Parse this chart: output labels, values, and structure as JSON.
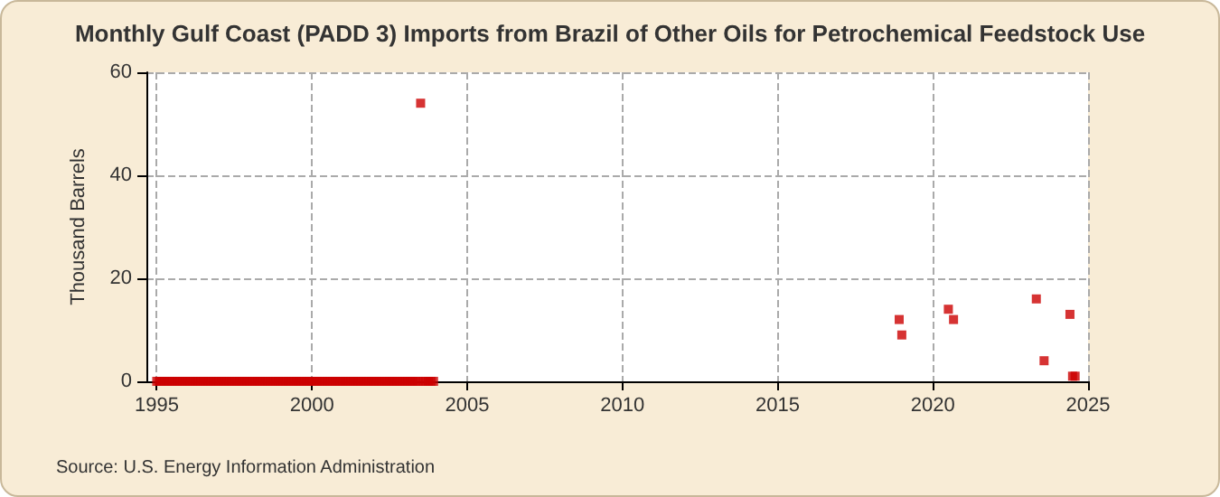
{
  "chart_data": {
    "type": "scatter",
    "title": "Monthly Gulf Coast (PADD 3) Imports from Brazil of Other Oils for Petrochemical Feedstock Use",
    "ylabel": "Thousand Barrels",
    "annotations": [
      "Source: U.S. Energy Information Administration"
    ],
    "x": [
      "1995-01",
      "1995-02",
      "1995-03",
      "1995-04",
      "1995-05",
      "1995-06",
      "1995-07",
      "1995-08",
      "1995-09",
      "1995-10",
      "1995-11",
      "1995-12",
      "1996-01",
      "1996-02",
      "1996-03",
      "1996-04",
      "1996-05",
      "1996-06",
      "1996-07",
      "1996-08",
      "1996-09",
      "1996-10",
      "1996-11",
      "1996-12",
      "1997-01",
      "1997-02",
      "1997-03",
      "1997-04",
      "1997-05",
      "1997-06",
      "1997-07",
      "1997-08",
      "1997-09",
      "1997-10",
      "1997-11",
      "1997-12",
      "1998-01",
      "1998-02",
      "1998-03",
      "1998-04",
      "1998-05",
      "1998-06",
      "1998-07",
      "1998-08",
      "1998-09",
      "1998-10",
      "1998-11",
      "1998-12",
      "1999-01",
      "1999-02",
      "1999-03",
      "1999-04",
      "1999-05",
      "1999-06",
      "1999-07",
      "1999-08",
      "1999-09",
      "1999-10",
      "1999-11",
      "1999-12",
      "2000-01",
      "2000-02",
      "2000-03",
      "2000-04",
      "2000-05",
      "2000-06",
      "2000-07",
      "2000-08",
      "2000-09",
      "2000-10",
      "2000-11",
      "2000-12",
      "2001-01",
      "2001-02",
      "2001-03",
      "2001-04",
      "2001-05",
      "2001-06",
      "2001-07",
      "2001-08",
      "2001-09",
      "2001-10",
      "2001-11",
      "2001-12",
      "2002-01",
      "2002-02",
      "2002-03",
      "2002-04",
      "2002-05",
      "2002-06",
      "2002-07",
      "2002-08",
      "2002-09",
      "2002-10",
      "2002-11",
      "2002-12",
      "2003-01",
      "2003-02",
      "2003-03",
      "2003-04",
      "2003-05",
      "2003-06",
      "2003-07",
      "2003-08",
      "2003-09",
      "2003-10",
      "2003-11",
      "2003-12",
      "2018-12",
      "2019-01",
      "2020-07",
      "2020-09",
      "2023-05",
      "2023-08",
      "2024-06",
      "2024-07",
      "2024-08"
    ],
    "values": [
      0,
      0,
      0,
      0,
      0,
      0,
      0,
      0,
      0,
      0,
      0,
      0,
      0,
      0,
      0,
      0,
      0,
      0,
      0,
      0,
      0,
      0,
      0,
      0,
      0,
      0,
      0,
      0,
      0,
      0,
      0,
      0,
      0,
      0,
      0,
      0,
      0,
      0,
      0,
      0,
      0,
      0,
      0,
      0,
      0,
      0,
      0,
      0,
      0,
      0,
      0,
      0,
      0,
      0,
      0,
      0,
      0,
      0,
      0,
      0,
      0,
      0,
      0,
      0,
      0,
      0,
      0,
      0,
      0,
      0,
      0,
      0,
      0,
      0,
      0,
      0,
      0,
      0,
      0,
      0,
      0,
      0,
      0,
      0,
      0,
      0,
      0,
      0,
      0,
      0,
      0,
      0,
      0,
      0,
      0,
      0,
      0,
      0,
      0,
      0,
      0,
      0,
      54,
      0,
      0,
      0,
      0,
      0,
      12,
      9,
      14,
      12,
      16,
      4,
      13,
      1,
      1
    ],
    "color": "#cc0000",
    "marker": "square",
    "xlim": [
      "1994-09",
      "2025-01"
    ],
    "xticks": [
      "1995",
      "2000",
      "2005",
      "2010",
      "2015",
      "2020",
      "2025"
    ],
    "ylim": [
      0,
      60
    ],
    "yticks": [
      0,
      20,
      40,
      60
    ],
    "grid": true
  }
}
